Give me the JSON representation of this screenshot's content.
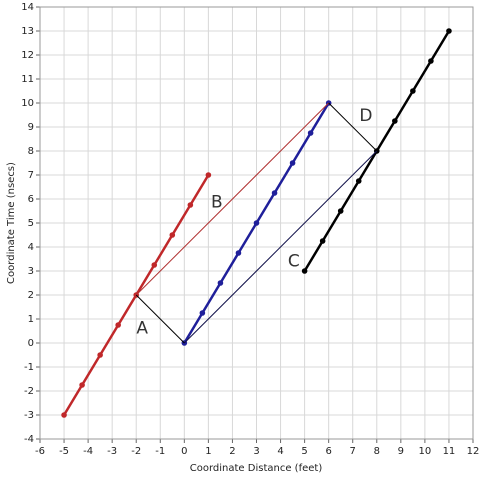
{
  "chart_data": {
    "type": "line",
    "xlabel": "Coordinate Distance (feet)",
    "ylabel": "Coordinate Time (nsecs)",
    "xlim": [
      -6,
      12
    ],
    "ylim": [
      -4,
      14
    ],
    "xticks": [
      -6,
      -5,
      -4,
      -3,
      -2,
      -1,
      0,
      1,
      2,
      3,
      4,
      5,
      6,
      7,
      8,
      9,
      10,
      11,
      12
    ],
    "yticks": [
      -4,
      -3,
      -2,
      -1,
      0,
      1,
      2,
      3,
      4,
      5,
      6,
      7,
      8,
      9,
      10,
      11,
      12,
      13,
      14
    ],
    "grid": true,
    "series": [
      {
        "color": "#c0282a",
        "width": 2.5,
        "markers": true,
        "x": [
          -5,
          -4.25,
          -3.5,
          -2.75,
          -2,
          -1.25,
          -0.5,
          0.25,
          1
        ],
        "values": [
          -3,
          -1.75,
          -0.5,
          0.75,
          2,
          3.25,
          4.5,
          5.75,
          7
        ]
      },
      {
        "color": "#1f1f9a",
        "width": 2.5,
        "markers": true,
        "x": [
          0,
          0.75,
          1.5,
          2.25,
          3,
          3.75,
          4.5,
          5.25,
          6
        ],
        "values": [
          0,
          1.25,
          2.5,
          3.75,
          5,
          6.25,
          7.5,
          8.75,
          10
        ]
      },
      {
        "color": "#000000",
        "width": 2.5,
        "markers": true,
        "x": [
          5,
          5.75,
          6.5,
          7.25,
          8,
          8.75,
          9.5,
          10.25,
          11
        ],
        "values": [
          3,
          4.25,
          5.5,
          6.75,
          8,
          9.25,
          10.5,
          11.75,
          13
        ]
      },
      {
        "color": "#b03030",
        "width": 1,
        "markers": false,
        "x": [
          -2,
          6
        ],
        "values": [
          2,
          10
        ]
      },
      {
        "color": "#10104a",
        "width": 1,
        "markers": false,
        "x": [
          0,
          8
        ],
        "values": [
          0,
          8
        ]
      },
      {
        "color": "#000000",
        "width": 1,
        "markers": false,
        "x": [
          -2,
          0
        ],
        "values": [
          2,
          0
        ]
      },
      {
        "color": "#000000",
        "width": 1,
        "markers": false,
        "x": [
          6,
          8
        ],
        "values": [
          10,
          8
        ]
      }
    ],
    "annotations": [
      {
        "text": "A",
        "x": -1.75,
        "y": 0.6
      },
      {
        "text": "B",
        "x": 1.35,
        "y": 5.85
      },
      {
        "text": "C",
        "x": 4.55,
        "y": 3.4
      },
      {
        "text": "D",
        "x": 7.55,
        "y": 9.45
      }
    ]
  }
}
